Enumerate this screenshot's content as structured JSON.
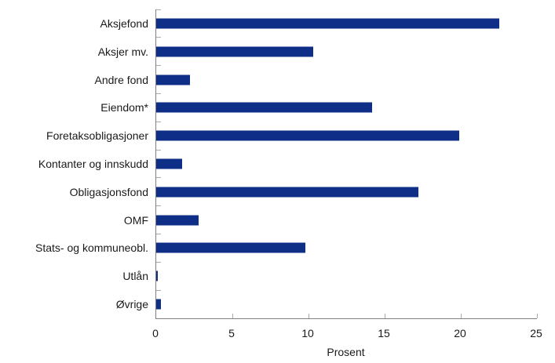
{
  "chart_data": {
    "type": "bar",
    "orientation": "horizontal",
    "categories": [
      "Aksjefond",
      "Aksjer mv.",
      "Andre fond",
      "Eiendom*",
      "Foretaksobligasjoner",
      "Kontanter og innskudd",
      "Obligasjonsfond",
      "OMF",
      "Stats- og kommuneobl.",
      "Utlån",
      "Øvrige"
    ],
    "values": [
      22.5,
      10.3,
      2.2,
      14.2,
      19.9,
      1.7,
      17.2,
      2.8,
      9.8,
      0.1,
      0.3
    ],
    "title": "",
    "xlabel": "Prosent",
    "ylabel": "",
    "xlim": [
      0,
      25
    ],
    "xticks": [
      0,
      5,
      10,
      15,
      20,
      25
    ],
    "grid": false,
    "legend_position": "none",
    "bar_color": "#0f2e87",
    "axis_color": "#808080",
    "tick_color": "#ababab",
    "text_color": "#1a1a1a",
    "background_color": "#ffffff"
  }
}
